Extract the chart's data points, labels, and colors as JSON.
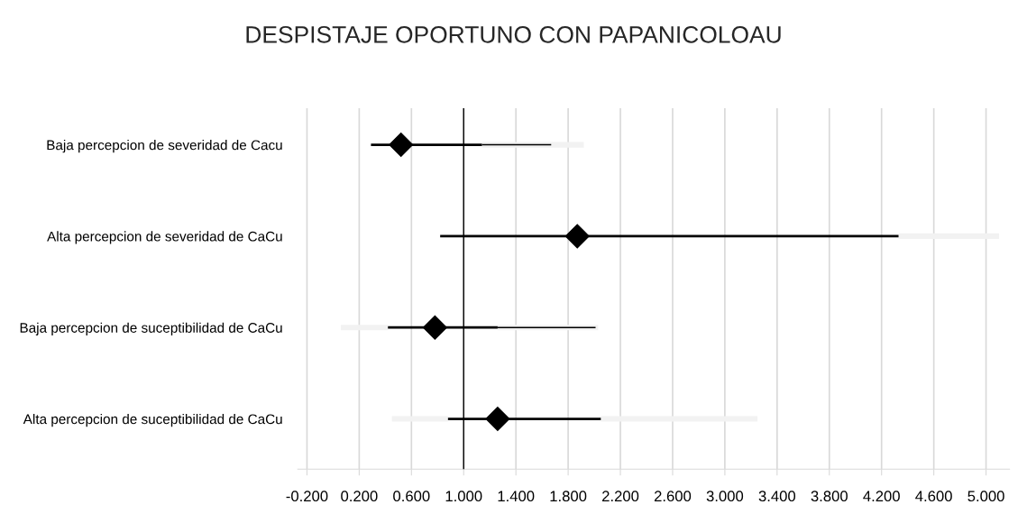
{
  "chart_data": {
    "type": "scatter",
    "title": "DESPISTAJE OPORTUNO CON PAPANICOLOAU",
    "orientation": "horizontal",
    "categories": [
      "Baja percepcion de severidad de Cacu",
      "Alta percepcion de severidad de CaCu",
      "Baja percepcion de suceptibilidad de CaCu",
      "Alta percepcion de suceptibilidad de CaCu"
    ],
    "series": [
      {
        "type": "bar",
        "color": "#f2f2f2",
        "base": [
          null,
          null,
          0.06,
          0.45
        ],
        "values": [
          null,
          null,
          0.36,
          0.43
        ]
      },
      {
        "type": "bar",
        "color": "#f2f2f2",
        "base": [
          1.14,
          4.33,
          1.26,
          2.05
        ],
        "values": [
          0.78,
          0.77,
          0.77,
          1.2
        ]
      },
      {
        "type": "bar",
        "color": "#000000",
        "base": [
          1.14,
          null,
          1.26,
          null
        ],
        "values": [
          0.53,
          null,
          0.75,
          null
        ]
      },
      {
        "color": "#000000",
        "values": [
          0.52,
          1.87,
          0.78,
          1.26
        ],
        "errors": [
          [
            0.29,
            1.14
          ],
          [
            0.82,
            4.33
          ],
          [
            0.42,
            1.26
          ],
          [
            0.88,
            2.05
          ]
        ]
      }
    ],
    "marker": "diamond",
    "xlim": [
      -0.27,
      5.18
    ],
    "xticks": [
      {
        "value": -0.2,
        "label": "-0.200"
      },
      {
        "value": 0.2,
        "label": "0.200"
      },
      {
        "value": 0.6,
        "label": "0.600"
      },
      {
        "value": 1.0,
        "label": "1.000"
      },
      {
        "value": 1.4,
        "label": "1.400"
      },
      {
        "value": 1.8,
        "label": "1.800"
      },
      {
        "value": 2.2,
        "label": "2.200"
      },
      {
        "value": 2.6,
        "label": "2.600"
      },
      {
        "value": 3.0,
        "label": "3.000"
      },
      {
        "value": 3.4,
        "label": "3.400"
      },
      {
        "value": 3.8,
        "label": "3.800"
      },
      {
        "value": 4.2,
        "label": "4.200"
      },
      {
        "value": 4.6,
        "label": "4.600"
      },
      {
        "value": 5.0,
        "label": "5.000"
      }
    ],
    "ref_lines": [
      {
        "axis": "x",
        "value": 1.0,
        "color": "#000000"
      }
    ],
    "grid": "x"
  }
}
